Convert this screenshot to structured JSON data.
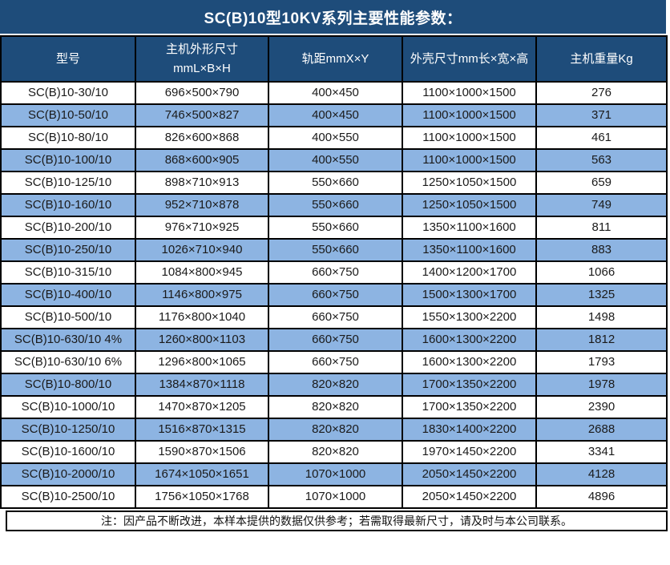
{
  "title": "SC(B)10型10KV系列主要性能参数：",
  "table": {
    "columns": [
      {
        "label": "型号"
      },
      {
        "label": "主机外形尺寸",
        "sub": "mmL×B×H"
      },
      {
        "label": "轨距mmX×Y"
      },
      {
        "label": "外壳尺寸mm长×宽×高"
      },
      {
        "label": "主机重量Kg"
      }
    ],
    "rows": [
      [
        "SC(B)10-30/10",
        "696×500×790",
        "400×450",
        "1100×1000×1500",
        "276"
      ],
      [
        "SC(B)10-50/10",
        "746×500×827",
        "400×450",
        "1100×1000×1500",
        "371"
      ],
      [
        "SC(B)10-80/10",
        "826×600×868",
        "400×550",
        "1100×1000×1500",
        "461"
      ],
      [
        "SC(B)10-100/10",
        "868×600×905",
        "400×550",
        "1100×1000×1500",
        "563"
      ],
      [
        "SC(B)10-125/10",
        "898×710×913",
        "550×660",
        "1250×1050×1500",
        "659"
      ],
      [
        "SC(B)10-160/10",
        "952×710×878",
        "550×660",
        "1250×1050×1500",
        "749"
      ],
      [
        "SC(B)10-200/10",
        "976×710×925",
        "550×660",
        "1350×1100×1600",
        "811"
      ],
      [
        "SC(B)10-250/10",
        "1026×710×940",
        "550×660",
        "1350×1100×1600",
        "883"
      ],
      [
        "SC(B)10-315/10",
        "1084×800×945",
        "660×750",
        "1400×1200×1700",
        "1066"
      ],
      [
        "SC(B)10-400/10",
        "1146×800×975",
        "660×750",
        "1500×1300×1700",
        "1325"
      ],
      [
        "SC(B)10-500/10",
        "1176×800×1040",
        "660×750",
        "1550×1300×2200",
        "1498"
      ],
      [
        "SC(B)10-630/10 4%",
        "1260×800×1103",
        "660×750",
        "1600×1300×2200",
        "1812"
      ],
      [
        "SC(B)10-630/10 6%",
        "1296×800×1065",
        "660×750",
        "1600×1300×2200",
        "1793"
      ],
      [
        "SC(B)10-800/10",
        "1384×870×1118",
        "820×820",
        "1700×1350×2200",
        "1978"
      ],
      [
        "SC(B)10-1000/10",
        "1470×870×1205",
        "820×820",
        "1700×1350×2200",
        "2390"
      ],
      [
        "SC(B)10-1250/10",
        "1516×870×1315",
        "820×820",
        "1830×1400×2200",
        "2688"
      ],
      [
        "SC(B)10-1600/10",
        "1590×870×1506",
        "820×820",
        "1970×1450×2200",
        "3341"
      ],
      [
        "SC(B)10-2000/10",
        "1674×1050×1651",
        "1070×1000",
        "2050×1450×2200",
        "4128"
      ],
      [
        "SC(B)10-2500/10",
        "1756×1050×1768",
        "1070×1000",
        "2050×1450×2200",
        "4896"
      ]
    ]
  },
  "note": "注：因产品不断改进，本样本提供的数据仅供参考；若需取得最新尺寸，请及时与本公司联系。",
  "colors": {
    "header_bg": "#1E4C7A",
    "alt_row_bg": "#8DB4E2",
    "row_bg": "#FFFFFF",
    "grid_border": "#000000",
    "header_text": "#FFFFFF",
    "body_text": "#1A1A1A"
  }
}
